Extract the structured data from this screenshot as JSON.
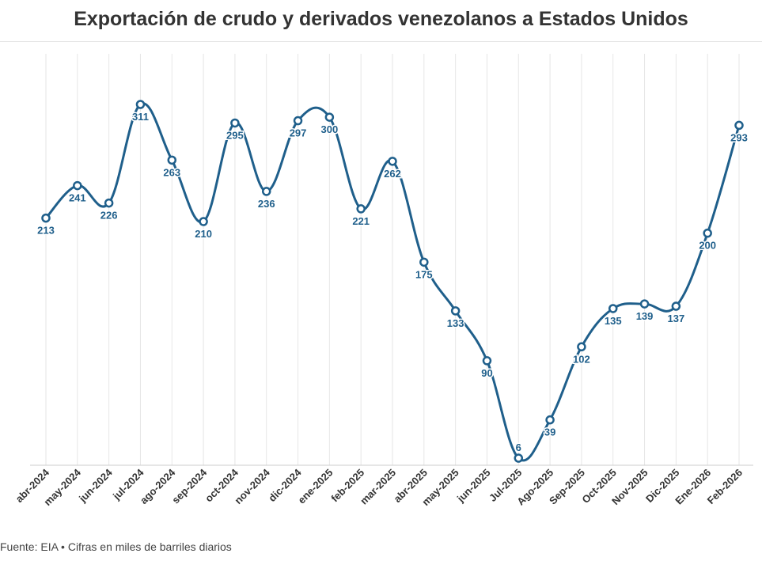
{
  "title": "Exportación de crudo y derivados venezolanos a Estados Unidos",
  "footer": "Fuente: EIA • Cifras en miles de barriles diarios",
  "colors": {
    "line": "#1f5f8b",
    "label": "#1f5f8b",
    "grid": "#e6e6e6",
    "axis": "#333333"
  },
  "chart_data": {
    "type": "line",
    "categories": [
      "abr-2024",
      "may-2024",
      "jun-2024",
      "jul-2024",
      "ago-2024",
      "sep-2024",
      "oct-2024",
      "nov-2024",
      "dic-2024",
      "ene-2025",
      "feb-2025",
      "mar-2025",
      "abr-2025",
      "may-2025",
      "jun-2025",
      "Jul-2025",
      "Ago-2025",
      "Sep-2025",
      "Oct-2025",
      "Nov-2025",
      "Dic-2025",
      "Ene-2026",
      "Feb-2026"
    ],
    "values": [
      213,
      241,
      226,
      311,
      263,
      210,
      295,
      236,
      297,
      300,
      221,
      262,
      175,
      133,
      90,
      6,
      39,
      102,
      135,
      139,
      137,
      200,
      293
    ],
    "label_positions": [
      "below",
      "below",
      "below",
      "below",
      "below",
      "below",
      "below",
      "below",
      "below",
      "below",
      "below",
      "below",
      "below",
      "below",
      "below",
      "above",
      "below",
      "below",
      "below",
      "below",
      "below",
      "below",
      "below"
    ],
    "ylim": [
      6,
      311
    ],
    "grid": "vertical",
    "xlabel": "",
    "ylabel": ""
  }
}
